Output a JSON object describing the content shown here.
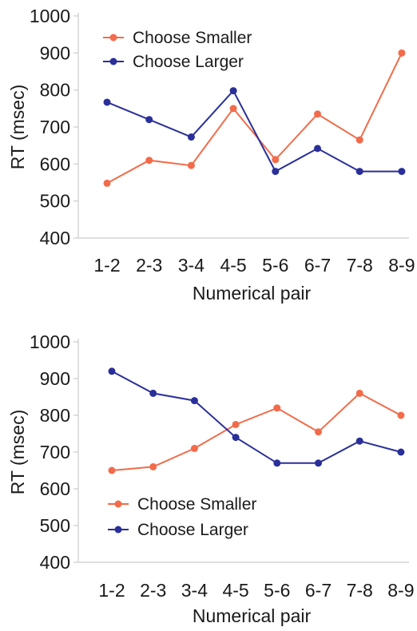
{
  "colors": {
    "smaller": "#f26b4a",
    "larger": "#2a2f9a",
    "axis": "#cccccc",
    "text": "#1a1a1a"
  },
  "chart_data": [
    {
      "type": "line",
      "categories": [
        "1-2",
        "2-3",
        "3-4",
        "4-5",
        "5-6",
        "6-7",
        "7-8",
        "8-9"
      ],
      "xlabel": "Numerical pair",
      "ylabel": "RT (msec)",
      "ylim": [
        400,
        1000
      ],
      "yticks": [
        400,
        500,
        600,
        700,
        800,
        900,
        1000
      ],
      "grid": false,
      "legend_position": "top-left",
      "series": [
        {
          "name": "Choose Smaller",
          "color": "#f26b4a",
          "values": [
            548,
            610,
            596,
            750,
            612,
            735,
            665,
            900
          ]
        },
        {
          "name": "Choose Larger",
          "color": "#2a2f9a",
          "values": [
            767,
            720,
            673,
            798,
            580,
            642,
            580,
            580
          ]
        }
      ]
    },
    {
      "type": "line",
      "categories": [
        "1-2",
        "2-3",
        "3-4",
        "4-5",
        "5-6",
        "6-7",
        "7-8",
        "8-9"
      ],
      "xlabel": "Numerical pair",
      "ylabel": "RT (msec)",
      "ylim": [
        400,
        1000
      ],
      "yticks": [
        400,
        500,
        600,
        700,
        800,
        900,
        1000
      ],
      "grid": false,
      "legend_position": "bottom-left",
      "series": [
        {
          "name": "Choose Smaller",
          "color": "#f26b4a",
          "values": [
            650,
            660,
            710,
            775,
            820,
            755,
            860,
            800
          ]
        },
        {
          "name": "Choose Larger",
          "color": "#2a2f9a",
          "values": [
            920,
            860,
            840,
            740,
            670,
            670,
            730,
            700
          ]
        }
      ]
    }
  ]
}
